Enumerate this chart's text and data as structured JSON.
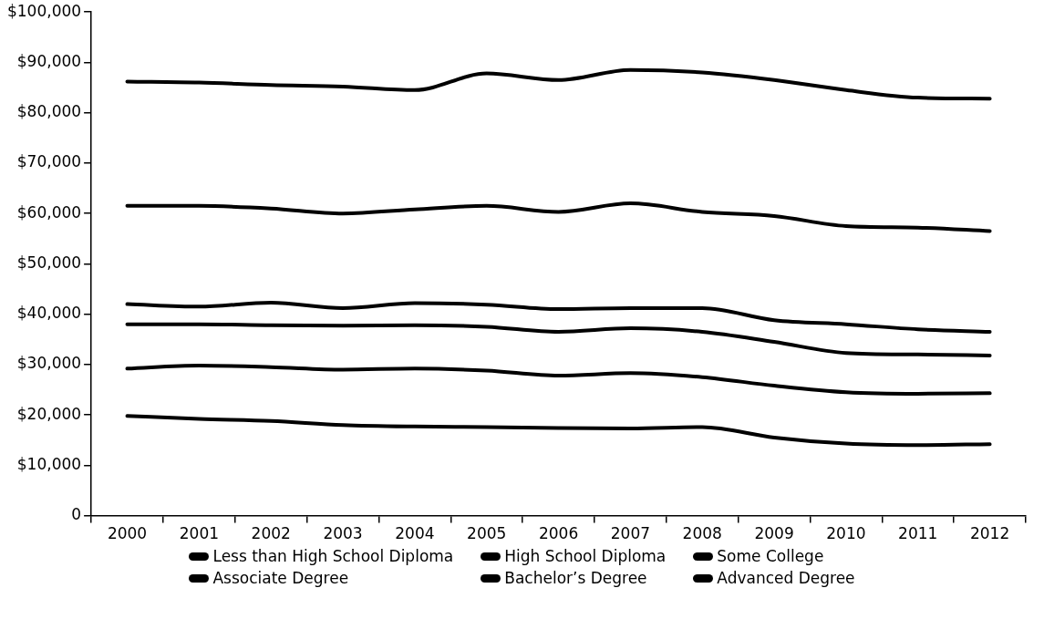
{
  "chart_data": {
    "type": "line",
    "categories": [
      "2000",
      "2001",
      "2002",
      "2003",
      "2004",
      "2005",
      "2006",
      "2007",
      "2008",
      "2009",
      "2010",
      "2011",
      "2012"
    ],
    "series": [
      {
        "name": "Less than High School Diploma",
        "color": "#000000",
        "values": [
          19800,
          19200,
          18800,
          18000,
          17700,
          17600,
          17400,
          17300,
          17600,
          15500,
          14300,
          14000,
          14200
        ]
      },
      {
        "name": "High School Diploma",
        "color": "#000000",
        "values": [
          29200,
          29800,
          29500,
          29000,
          29200,
          28800,
          27800,
          28300,
          27500,
          25800,
          24500,
          24200,
          24300
        ]
      },
      {
        "name": "Some College",
        "color": "#000000",
        "values": [
          38000,
          38000,
          37800,
          37700,
          37800,
          37500,
          36500,
          37200,
          36500,
          34500,
          32300,
          32000,
          31800
        ]
      },
      {
        "name": "Associate Degree",
        "color": "#000000",
        "values": [
          42000,
          41500,
          42300,
          41200,
          42200,
          41900,
          41000,
          41200,
          41200,
          38800,
          38000,
          37000,
          36500
        ]
      },
      {
        "name": "Bachelor’s Degree",
        "color": "#000000",
        "values": [
          61500,
          61500,
          61000,
          60000,
          60800,
          61500,
          60300,
          62000,
          60300,
          59500,
          57500,
          57200,
          56500
        ]
      },
      {
        "name": "Advanced Degree",
        "color": "#000000",
        "values": [
          86200,
          86000,
          85500,
          85200,
          84500,
          87800,
          86500,
          88500,
          88000,
          86500,
          84500,
          83000,
          82800
        ]
      }
    ],
    "ylim": [
      0,
      100000
    ],
    "yticks": [
      {
        "value": 0,
        "label": "0"
      },
      {
        "value": 10000,
        "label": "$10,000"
      },
      {
        "value": 20000,
        "label": "$20,000"
      },
      {
        "value": 30000,
        "label": "$30,000"
      },
      {
        "value": 40000,
        "label": "$40,000"
      },
      {
        "value": 50000,
        "label": "$50,000"
      },
      {
        "value": 60000,
        "label": "$60,000"
      },
      {
        "value": 70000,
        "label": "$70,000"
      },
      {
        "value": 80000,
        "label": "$80,000"
      },
      {
        "value": 90000,
        "label": "$90,000"
      },
      {
        "value": 100000,
        "label": "$100,000"
      }
    ],
    "grid": false,
    "legend": "bottom",
    "marker": "none",
    "line_style": "solid"
  }
}
